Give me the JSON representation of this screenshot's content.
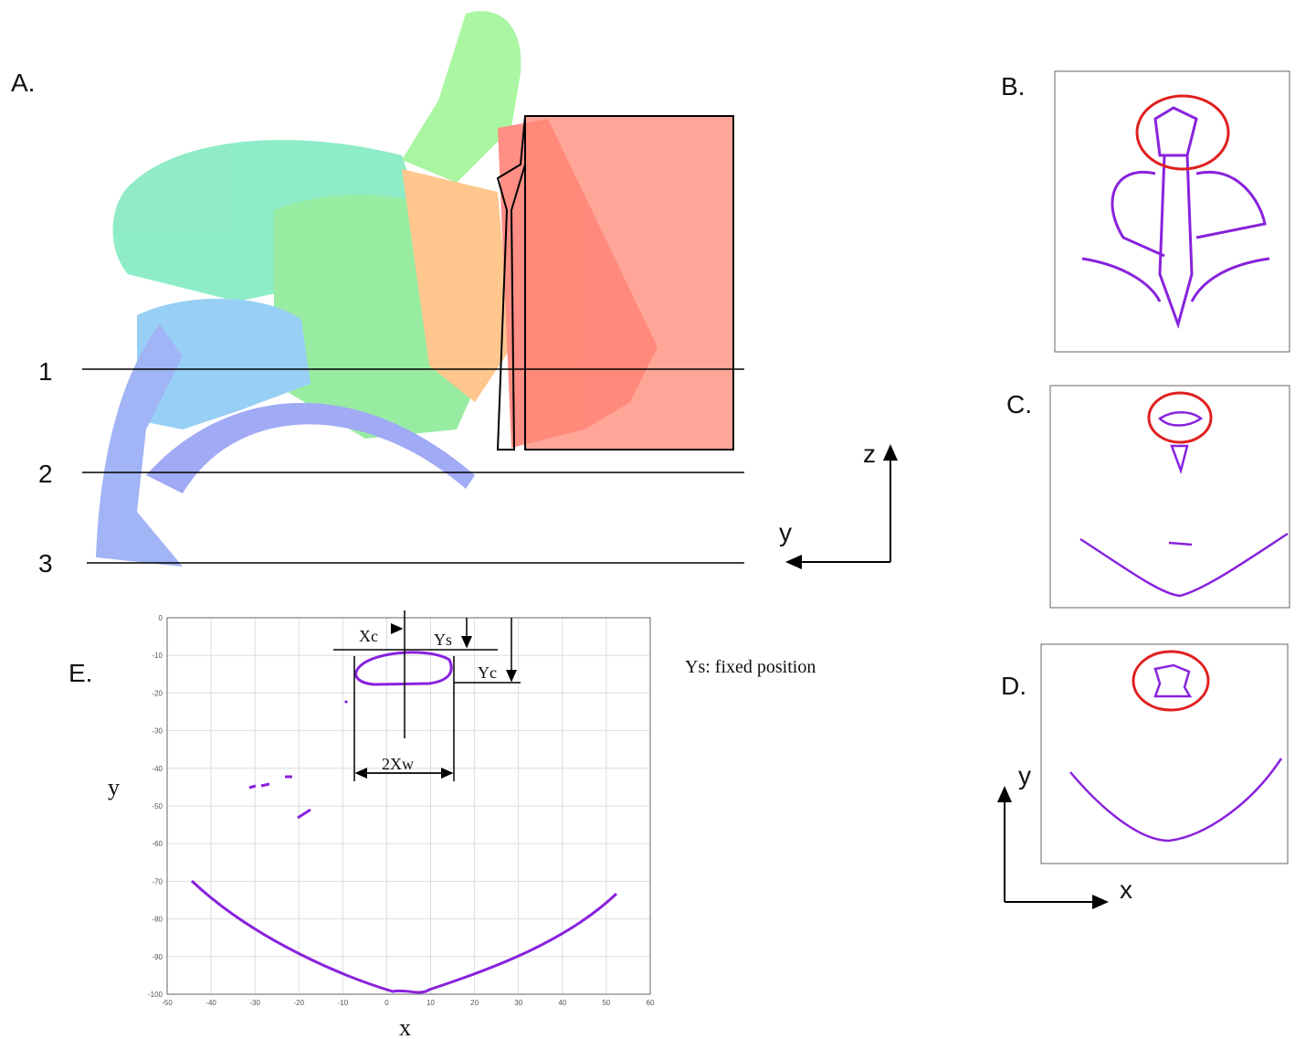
{
  "panels": {
    "A": {
      "label": "A.",
      "lines": [
        "1",
        "2",
        "3"
      ],
      "axis_vertical": "z",
      "axis_horizontal": "y"
    },
    "B": {
      "label": "B."
    },
    "C": {
      "label": "C."
    },
    "D": {
      "label": "D.",
      "axis_vertical": "y",
      "axis_horizontal": "x"
    },
    "E": {
      "label": "E.",
      "x_label": "x",
      "y_label": "y",
      "annotations": [
        "Xc",
        "Ys",
        "Yc",
        "2Xw"
      ],
      "note": "Ys: fixed position",
      "xlim": [
        -50,
        60
      ],
      "ylim": [
        -100,
        0
      ],
      "xticks": [
        -50,
        -40,
        -30,
        -20,
        -10,
        0,
        10,
        20,
        30,
        40,
        50,
        60
      ],
      "yticks": [
        0,
        -10,
        -20,
        -30,
        -40,
        -50,
        -60,
        -70,
        -80,
        -90,
        -100
      ]
    }
  }
}
